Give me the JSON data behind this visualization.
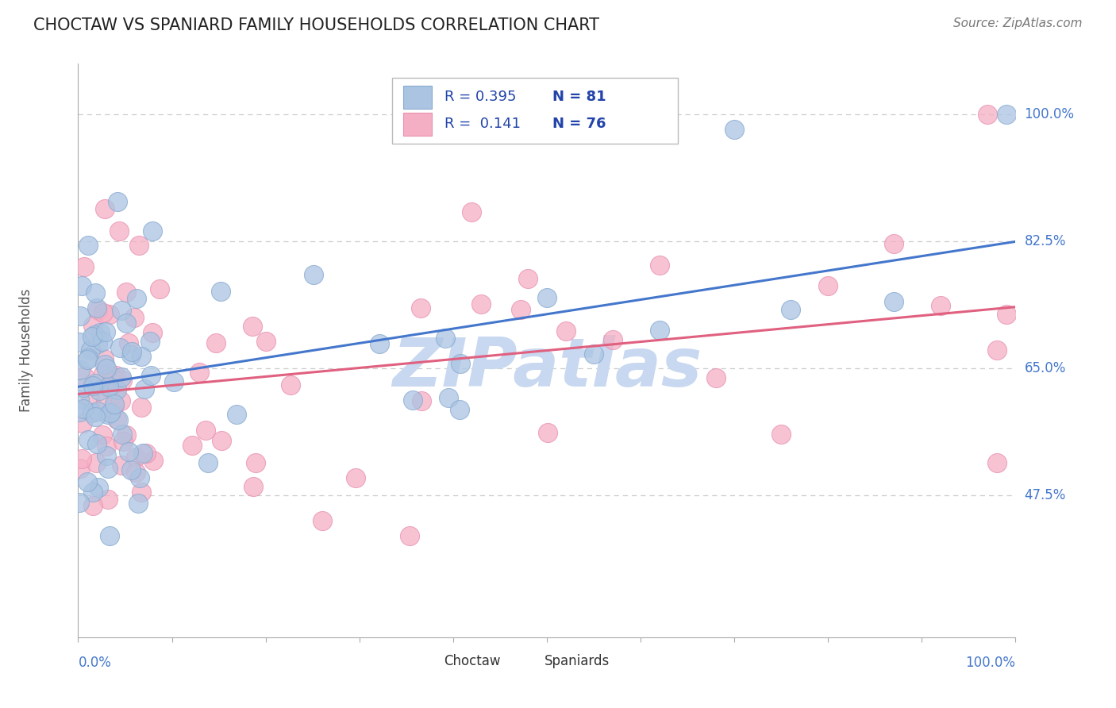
{
  "title": "CHOCTAW VS SPANIARD FAMILY HOUSEHOLDS CORRELATION CHART",
  "source": "Source: ZipAtlas.com",
  "ylabel": "Family Households",
  "ytick_labels": [
    "47.5%",
    "65.0%",
    "82.5%",
    "100.0%"
  ],
  "ytick_values": [
    0.475,
    0.65,
    0.825,
    1.0
  ],
  "xmin": 0.0,
  "xmax": 1.0,
  "ymin": 0.28,
  "ymax": 1.07,
  "legend_line1": "R = 0.395   N = 81",
  "legend_line2": "R =  0.141   N = 76",
  "choctaw_color": "#aac4e2",
  "spaniard_color": "#f5afc5",
  "choctaw_edge_color": "#88aad0",
  "spaniard_edge_color": "#e890b0",
  "choctaw_line_color": "#4477cc",
  "spaniard_line_color": "#e06080",
  "legend_text_color": "#2244aa",
  "title_color": "#222222",
  "axis_label_color": "#4477cc",
  "grid_color": "#cccccc",
  "background_color": "#ffffff",
  "watermark_color": "#c8d8f0",
  "choctaw_trend_x0": 0.0,
  "choctaw_trend_y0": 0.625,
  "choctaw_trend_x1": 1.0,
  "choctaw_trend_y1": 0.825,
  "spaniard_trend_x0": 0.0,
  "spaniard_trend_y0": 0.615,
  "spaniard_trend_x1": 1.0,
  "spaniard_trend_y1": 0.735
}
